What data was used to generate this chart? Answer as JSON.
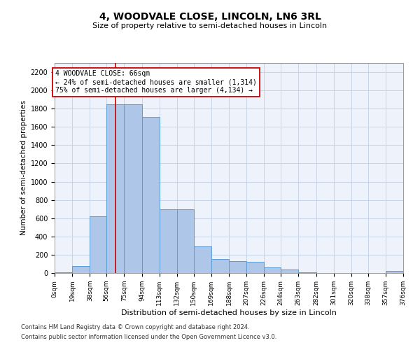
{
  "title": "4, WOODVALE CLOSE, LINCOLN, LN6 3RL",
  "subtitle": "Size of property relative to semi-detached houses in Lincoln",
  "xlabel": "Distribution of semi-detached houses by size in Lincoln",
  "ylabel": "Number of semi-detached properties",
  "footnote1": "Contains HM Land Registry data © Crown copyright and database right 2024.",
  "footnote2": "Contains public sector information licensed under the Open Government Licence v3.0.",
  "bin_edges": [
    0,
    19,
    38,
    56,
    75,
    94,
    113,
    132,
    150,
    169,
    188,
    207,
    226,
    244,
    263,
    282,
    301,
    320,
    338,
    357,
    376
  ],
  "bin_counts": [
    5,
    80,
    620,
    1850,
    1850,
    1710,
    700,
    700,
    295,
    150,
    130,
    120,
    60,
    35,
    5,
    0,
    0,
    0,
    0,
    20
  ],
  "bar_color": "#aec6e8",
  "bar_edge_color": "#5b9bd5",
  "grid_color": "#c8d4e8",
  "background_color": "#eef2fb",
  "property_size": 66,
  "property_line_color": "#cc0000",
  "annotation_line1": "4 WOODVALE CLOSE: 66sqm",
  "annotation_line2": "← 24% of semi-detached houses are smaller (1,314)",
  "annotation_line3": "75% of semi-detached houses are larger (4,134) →",
  "annotation_box_color": "#ffffff",
  "annotation_box_edge": "#cc0000",
  "ylim": [
    0,
    2300
  ],
  "yticks": [
    0,
    200,
    400,
    600,
    800,
    1000,
    1200,
    1400,
    1600,
    1800,
    2000,
    2200
  ],
  "tick_labels": [
    "0sqm",
    "19sqm",
    "38sqm",
    "56sqm",
    "75sqm",
    "94sqm",
    "113sqm",
    "132sqm",
    "150sqm",
    "169sqm",
    "188sqm",
    "207sqm",
    "226sqm",
    "244sqm",
    "263sqm",
    "282sqm",
    "301sqm",
    "320sqm",
    "338sqm",
    "357sqm",
    "376sqm"
  ],
  "fig_width": 6.0,
  "fig_height": 5.0,
  "fig_dpi": 100
}
